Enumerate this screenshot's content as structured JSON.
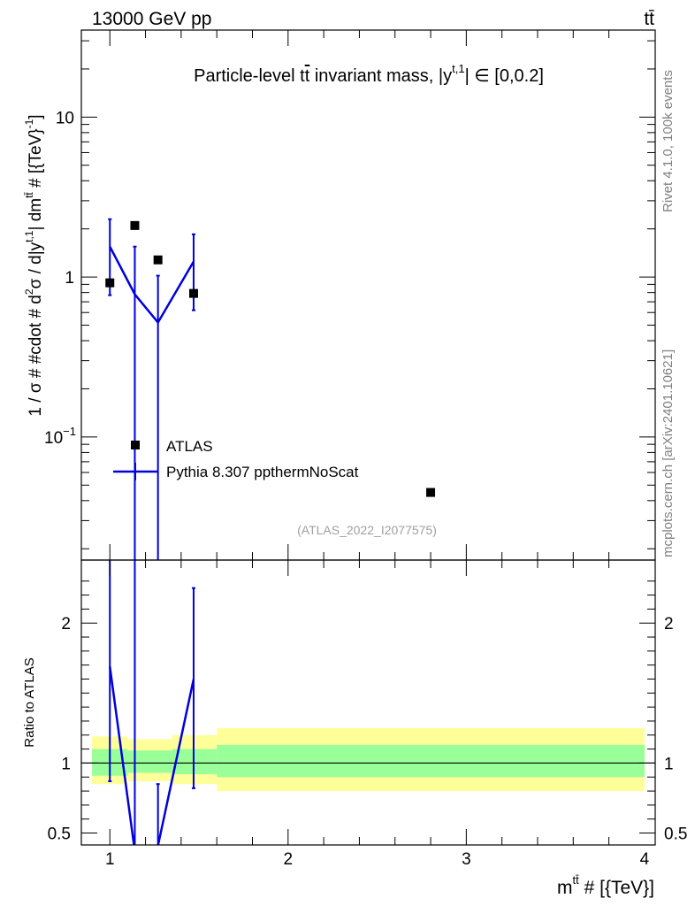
{
  "header": {
    "left": "13000 GeV pp",
    "right": "tt̄"
  },
  "side_labels": {
    "rivet": "Rivet 4.1.0,  100k events",
    "mcplots": "mcplots.cern.ch [arXiv:2401.10621]"
  },
  "chart_data": [
    {
      "type": "scatter",
      "title": "Particle-level tt̄ invariant mass, |y^{t,1}| ∈ [0,0.2]",
      "title_parts": {
        "main": "Particle-level t",
        "tbar": "t",
        "mid": " invariant mass, |y",
        "sup": "t,1",
        "tail": "| ∈ [0,0.2]"
      },
      "ylabel": "1 / σ # #cdot # d²σ / d|y^{t,1}| dm^{tt̄} # [{TeV}⁻¹]",
      "ylabel_parts": {
        "a": "1 / σ # #cdot # d",
        "sup2": "2",
        "b": "σ / d|y",
        "sup_t1": "t,1",
        "c": "| dm",
        "sup_tt": "tt̄",
        "d": " # [{TeV}",
        "sup_m1": "-1",
        "e": "]"
      },
      "yscale": "log",
      "ylim": [
        0.017,
        35
      ],
      "xlim": [
        0.84,
        4.06
      ],
      "y_ticks": [
        {
          "value": 0.1,
          "label": "10",
          "sup": "−1"
        },
        {
          "value": 1,
          "label": "1",
          "sup": ""
        },
        {
          "value": 10,
          "label": "10",
          "sup": ""
        }
      ],
      "legend": {
        "position": "center-left",
        "entries": [
          "ATLAS",
          "Pythia 8.307 ppthermNoScat"
        ]
      },
      "annotation": "(ATLAS_2022_I2077575)",
      "series": [
        {
          "name": "ATLAS",
          "style": "markers",
          "color": "#000000",
          "x": [
            1.0,
            1.14,
            1.27,
            1.47,
            2.8
          ],
          "y": [
            0.92,
            2.1,
            1.28,
            0.79,
            0.045
          ]
        },
        {
          "name": "Pythia 8.307 ppthermNoScat",
          "style": "line",
          "color": "#0000dd",
          "x": [
            1.0,
            1.14,
            1.27,
            1.47
          ],
          "y": [
            1.55,
            0.78,
            0.52,
            1.25
          ],
          "err_low": [
            0.77,
            0.005,
            0.005,
            0.62
          ],
          "err_high": [
            2.3,
            1.55,
            1.02,
            1.85
          ]
        }
      ]
    },
    {
      "type": "line",
      "ylabel": "Ratio to ATLAS",
      "xlabel": "m^{tt̄} # [{TeV}]",
      "xlabel_parts": {
        "m": "m",
        "sup": "tt̄",
        "rest": " # [{TeV}]"
      },
      "xlim": [
        0.84,
        4.06
      ],
      "ylim": [
        0.415,
        2.45
      ],
      "x_ticks": [
        1,
        2,
        3,
        4
      ],
      "y_ticks": [
        0.5,
        1,
        2
      ],
      "reference_line": 1,
      "bands": {
        "edges": [
          0.9,
          1.1,
          1.35,
          1.6,
          4.0
        ],
        "green_low": [
          0.91,
          0.93,
          0.92,
          0.9
        ],
        "green_high": [
          1.1,
          1.09,
          1.1,
          1.13
        ],
        "yellow_low": [
          0.85,
          0.87,
          0.85,
          0.8
        ],
        "yellow_high": [
          1.19,
          1.17,
          1.2,
          1.25
        ],
        "green_color": "#99ff99",
        "yellow_color": "#ffff99"
      },
      "series": [
        {
          "name": "Pythia 8.307 ppthermNoScat",
          "color": "#0000dd",
          "x": [
            1.0,
            1.14,
            1.27,
            1.47
          ],
          "y": [
            1.69,
            0.37,
            0.41,
            1.6
          ],
          "err_low": [
            0.87,
            0.3,
            0.3,
            0.82
          ],
          "err_high": [
            2.5,
            2.5,
            0.85,
            2.25
          ]
        }
      ]
    }
  ]
}
